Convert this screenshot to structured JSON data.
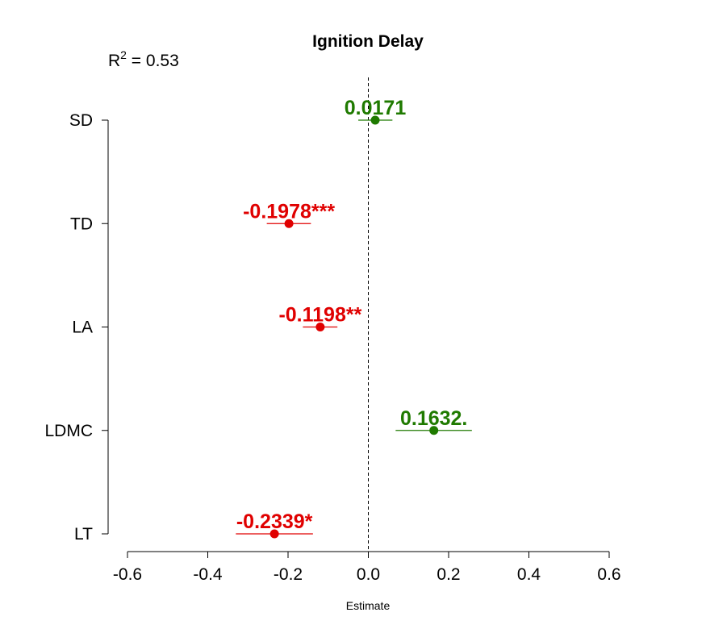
{
  "chart_data": {
    "type": "scatter",
    "title": "Ignition Delay",
    "xlabel": "Estimate",
    "ylabel": "",
    "xlim": [
      -0.6,
      0.6
    ],
    "x_ticks": [
      -0.6,
      -0.4,
      -0.2,
      0.0,
      0.2,
      0.4,
      0.6
    ],
    "x_tick_labels": [
      "-0.6",
      "-0.4",
      "-0.2",
      "0.0",
      "0.2",
      "0.4",
      "0.6"
    ],
    "reference_line_x": 0,
    "r2": {
      "prefix": "R",
      "superscript": "2",
      "text": " = 0.53"
    },
    "grid": false,
    "legend": "none",
    "colors": {
      "positive": "#1f7a00",
      "negative": "#e00000",
      "axis": "#000000"
    },
    "points": [
      {
        "category": "SD",
        "estimate": 0.0171,
        "ci": [
          -0.025,
          0.06
        ],
        "label": "0.0171",
        "sign": "positive"
      },
      {
        "category": "TD",
        "estimate": -0.1978,
        "ci": [
          -0.253,
          -0.143
        ],
        "label": "-0.1978***",
        "sign": "negative"
      },
      {
        "category": "LA",
        "estimate": -0.1198,
        "ci": [
          -0.163,
          -0.077
        ],
        "label": "-0.1198**",
        "sign": "negative"
      },
      {
        "category": "LDMC",
        "estimate": 0.1632,
        "ci": [
          0.068,
          0.258
        ],
        "label": "0.1632.",
        "sign": "positive"
      },
      {
        "category": "LT",
        "estimate": -0.2339,
        "ci": [
          -0.33,
          -0.138
        ],
        "label": "-0.2339*",
        "sign": "negative"
      }
    ]
  }
}
